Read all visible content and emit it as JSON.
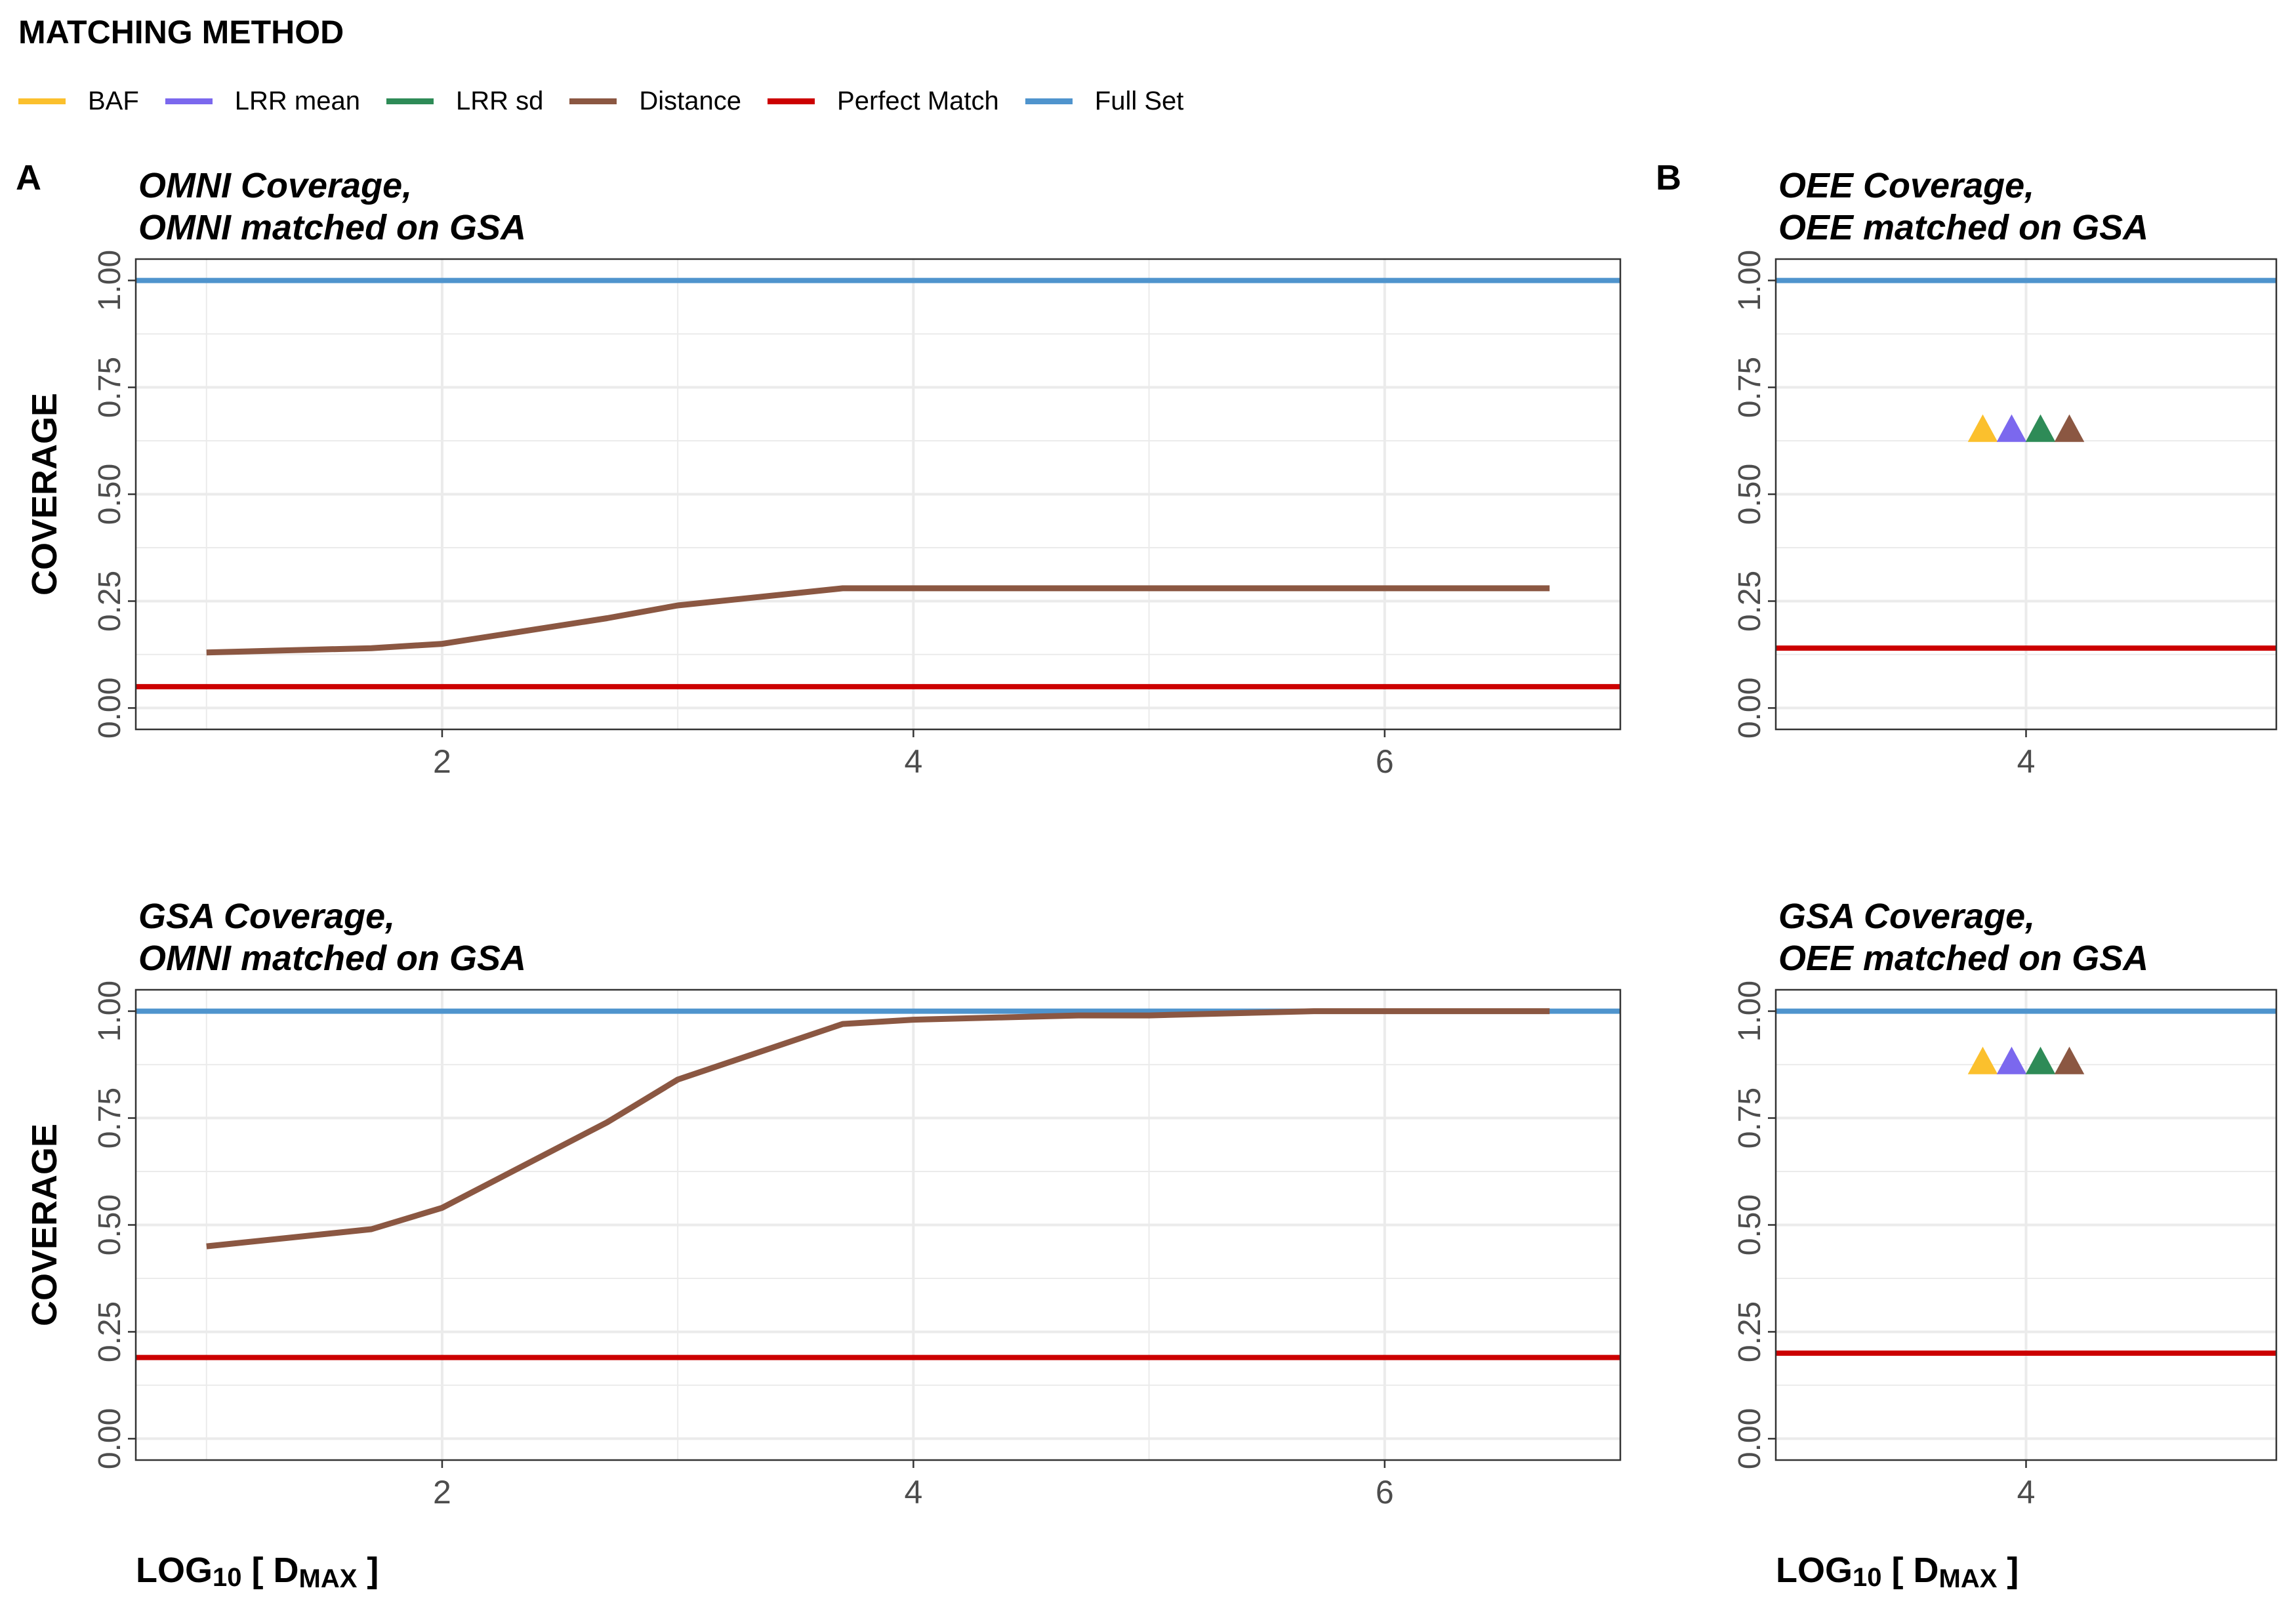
{
  "legend": {
    "title": "MATCHING METHOD",
    "items": [
      {
        "label": "BAF",
        "color": "#FBC02D"
      },
      {
        "label": "LRR mean",
        "color": "#7B68EE"
      },
      {
        "label": "LRR sd",
        "color": "#2E8B57"
      },
      {
        "label": "Distance",
        "color": "#8B5742"
      },
      {
        "label": "Perfect Match",
        "color": "#CC0000"
      },
      {
        "label": "Full Set",
        "color": "#4F94CD"
      }
    ]
  },
  "panel_letters": {
    "a": "A",
    "b": "B"
  },
  "chart_data": [
    {
      "id": "omni-omni",
      "type": "line",
      "title": "OMNI Coverage,\nOMNI matched on GSA",
      "xlabel": "",
      "ylabel": "COVERAGE",
      "xlim": [
        0.7,
        7.0
      ],
      "ylim": [
        -0.05,
        1.05
      ],
      "xticks": [
        2,
        4,
        6
      ],
      "yticks": [
        0.0,
        0.25,
        0.5,
        0.75,
        1.0
      ],
      "ytick_labels": [
        "0.00",
        "0.25",
        "0.50",
        "0.75",
        "1.00"
      ],
      "grid": true,
      "hlines": [
        {
          "name": "Full Set",
          "y": 1.0,
          "color": "#4F94CD"
        },
        {
          "name": "Perfect Match",
          "y": 0.05,
          "color": "#CC0000"
        }
      ],
      "series": [
        {
          "name": "Distance",
          "color": "#8B5742",
          "x": [
            1.0,
            1.7,
            2.0,
            2.7,
            3.0,
            3.7,
            4.0,
            4.7,
            5.0,
            5.7,
            6.0,
            6.7
          ],
          "y": [
            0.13,
            0.14,
            0.15,
            0.21,
            0.24,
            0.28,
            0.28,
            0.28,
            0.28,
            0.28,
            0.28,
            0.28
          ]
        }
      ],
      "points": []
    },
    {
      "id": "oee-oee",
      "type": "scatter",
      "title": "OEE Coverage,\nOEE matched on GSA",
      "xlabel": "",
      "ylabel": "",
      "xlim": [
        3.0,
        5.0
      ],
      "ylim": [
        -0.05,
        1.05
      ],
      "xticks": [
        4
      ],
      "yticks": [
        0.0,
        0.25,
        0.5,
        0.75,
        1.0
      ],
      "ytick_labels": [
        "0.00",
        "0.25",
        "0.50",
        "0.75",
        "1.00"
      ],
      "grid": true,
      "hlines": [
        {
          "name": "Full Set",
          "y": 1.0,
          "color": "#4F94CD"
        },
        {
          "name": "Perfect Match",
          "y": 0.14,
          "color": "#CC0000"
        }
      ],
      "series": [],
      "points": [
        {
          "name": "BAF",
          "x": 4,
          "y": 0.65,
          "color": "#FBC02D",
          "dodge": -1.5
        },
        {
          "name": "LRR mean",
          "x": 4,
          "y": 0.65,
          "color": "#7B68EE",
          "dodge": -0.5
        },
        {
          "name": "LRR sd",
          "x": 4,
          "y": 0.65,
          "color": "#2E8B57",
          "dodge": 0.5
        },
        {
          "name": "Distance",
          "x": 4,
          "y": 0.65,
          "color": "#8B5742",
          "dodge": 1.5
        }
      ]
    },
    {
      "id": "gsa-omni",
      "type": "line",
      "title": "GSA Coverage,\nOMNI matched on GSA",
      "xlabel": "LOG10 [ DMAX ]",
      "ylabel": "COVERAGE",
      "xlim": [
        0.7,
        7.0
      ],
      "ylim": [
        -0.05,
        1.05
      ],
      "xticks": [
        2,
        4,
        6
      ],
      "yticks": [
        0.0,
        0.25,
        0.5,
        0.75,
        1.0
      ],
      "ytick_labels": [
        "0.00",
        "0.25",
        "0.50",
        "0.75",
        "1.00"
      ],
      "grid": true,
      "hlines": [
        {
          "name": "Full Set",
          "y": 1.0,
          "color": "#4F94CD"
        },
        {
          "name": "Perfect Match",
          "y": 0.19,
          "color": "#CC0000"
        }
      ],
      "series": [
        {
          "name": "Distance",
          "color": "#8B5742",
          "x": [
            1.0,
            1.7,
            2.0,
            2.7,
            3.0,
            3.7,
            4.0,
            4.7,
            5.0,
            5.7,
            6.0,
            6.7
          ],
          "y": [
            0.45,
            0.49,
            0.54,
            0.74,
            0.84,
            0.97,
            0.98,
            0.99,
            0.99,
            1.0,
            1.0,
            1.0
          ]
        }
      ],
      "points": []
    },
    {
      "id": "gsa-oee",
      "type": "scatter",
      "title": "GSA Coverage,\nOEE matched on GSA",
      "xlabel": "LOG10 [ DMAX ]",
      "ylabel": "",
      "xlim": [
        3.0,
        5.0
      ],
      "ylim": [
        -0.05,
        1.05
      ],
      "xticks": [
        4
      ],
      "yticks": [
        0.0,
        0.25,
        0.5,
        0.75,
        1.0
      ],
      "ytick_labels": [
        "0.00",
        "0.25",
        "0.50",
        "0.75",
        "1.00"
      ],
      "grid": true,
      "hlines": [
        {
          "name": "Full Set",
          "y": 1.0,
          "color": "#4F94CD"
        },
        {
          "name": "Perfect Match",
          "y": 0.2,
          "color": "#CC0000"
        }
      ],
      "series": [],
      "points": [
        {
          "name": "BAF",
          "x": 4,
          "y": 0.88,
          "color": "#FBC02D",
          "dodge": -1.5
        },
        {
          "name": "LRR mean",
          "x": 4,
          "y": 0.88,
          "color": "#7B68EE",
          "dodge": -0.5
        },
        {
          "name": "LRR sd",
          "x": 4,
          "y": 0.88,
          "color": "#2E8B57",
          "dodge": 0.5
        },
        {
          "name": "Distance",
          "x": 4,
          "y": 0.88,
          "color": "#8B5742",
          "dodge": 1.5
        }
      ]
    }
  ]
}
